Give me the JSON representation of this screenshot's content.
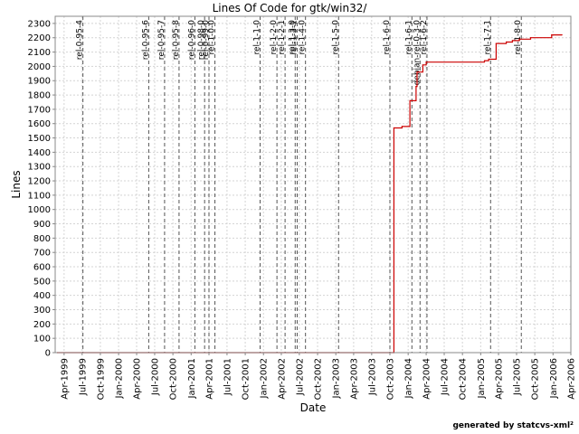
{
  "chart_data": {
    "type": "line",
    "title": "Lines Of Code for gtk/win32/",
    "xlabel": "Date",
    "ylabel": "Lines",
    "ylim": [
      0,
      2350
    ],
    "yticks": [
      0,
      100,
      200,
      300,
      400,
      500,
      600,
      700,
      800,
      900,
      1000,
      1100,
      1200,
      1300,
      1400,
      1500,
      1600,
      1700,
      1800,
      1900,
      2000,
      2100,
      2200,
      2300
    ],
    "xlim": [
      "1999-02-15",
      "2006-04-01"
    ],
    "xticks": [
      {
        "date": "1999-04-01",
        "label": "Apr-1999"
      },
      {
        "date": "1999-07-01",
        "label": "Jul-1999"
      },
      {
        "date": "1999-10-01",
        "label": "Oct-1999"
      },
      {
        "date": "2000-01-01",
        "label": "Jan-2000"
      },
      {
        "date": "2000-04-01",
        "label": "Apr-2000"
      },
      {
        "date": "2000-07-01",
        "label": "Jul-2000"
      },
      {
        "date": "2000-10-01",
        "label": "Oct-2000"
      },
      {
        "date": "2001-01-01",
        "label": "Jan-2001"
      },
      {
        "date": "2001-04-01",
        "label": "Apr-2001"
      },
      {
        "date": "2001-07-01",
        "label": "Jul-2001"
      },
      {
        "date": "2001-10-01",
        "label": "Oct-2001"
      },
      {
        "date": "2002-01-01",
        "label": "Jan-2002"
      },
      {
        "date": "2002-04-01",
        "label": "Apr-2002"
      },
      {
        "date": "2002-07-01",
        "label": "Jul-2002"
      },
      {
        "date": "2002-10-01",
        "label": "Oct-2002"
      },
      {
        "date": "2003-01-01",
        "label": "Jan-2003"
      },
      {
        "date": "2003-04-01",
        "label": "Apr-2003"
      },
      {
        "date": "2003-07-01",
        "label": "Jul-2003"
      },
      {
        "date": "2003-10-01",
        "label": "Oct-2003"
      },
      {
        "date": "2004-01-01",
        "label": "Jan-2004"
      },
      {
        "date": "2004-04-01",
        "label": "Apr-2004"
      },
      {
        "date": "2004-07-01",
        "label": "Jul-2004"
      },
      {
        "date": "2004-10-01",
        "label": "Oct-2004"
      },
      {
        "date": "2005-01-01",
        "label": "Jan-2005"
      },
      {
        "date": "2005-04-01",
        "label": "Apr-2005"
      },
      {
        "date": "2005-07-01",
        "label": "Jul-2005"
      },
      {
        "date": "2005-10-01",
        "label": "Oct-2005"
      },
      {
        "date": "2006-01-01",
        "label": "Jan-2006"
      },
      {
        "date": "2006-04-01",
        "label": "Apr-2006"
      }
    ],
    "grid": true,
    "legend": "none",
    "series": [
      {
        "color": "#cc0000",
        "step": true,
        "points": [
          {
            "x": "1999-02-25",
            "y": 0
          },
          {
            "x": "2003-10-20",
            "y": 0
          },
          {
            "x": "2003-10-21",
            "y": 1570
          },
          {
            "x": "2003-12-01",
            "y": 1580
          },
          {
            "x": "2004-01-10",
            "y": 1760
          },
          {
            "x": "2004-02-10",
            "y": 1860
          },
          {
            "x": "2004-02-15",
            "y": 1960
          },
          {
            "x": "2004-03-15",
            "y": 2010
          },
          {
            "x": "2004-04-01",
            "y": 2030
          },
          {
            "x": "2005-01-20",
            "y": 2040
          },
          {
            "x": "2005-02-10",
            "y": 2050
          },
          {
            "x": "2005-03-20",
            "y": 2160
          },
          {
            "x": "2005-05-10",
            "y": 2170
          },
          {
            "x": "2005-06-10",
            "y": 2180
          },
          {
            "x": "2005-07-15",
            "y": 2190
          },
          {
            "x": "2005-09-10",
            "y": 2200
          },
          {
            "x": "2005-12-25",
            "y": 2220
          },
          {
            "x": "2006-02-15",
            "y": 2220
          }
        ]
      }
    ],
    "markers": [
      {
        "date": "1999-07-05",
        "label": "rel-0-95-4"
      },
      {
        "date": "2000-06-01",
        "label": "rel-0-95-6"
      },
      {
        "date": "2000-08-20",
        "label": "rel-0-95-7"
      },
      {
        "date": "2000-11-01",
        "label": "rel-0-95-8"
      },
      {
        "date": "2001-01-20",
        "label": "rel-0-96-0"
      },
      {
        "date": "2001-03-10",
        "label": "rel-0-98-0"
      },
      {
        "date": "2001-04-01",
        "label": "rel-0-99-0"
      },
      {
        "date": "2001-05-01",
        "label": "rel-1-0-0"
      },
      {
        "date": "2001-12-15",
        "label": "rel-1-1-0"
      },
      {
        "date": "2002-03-10",
        "label": "rel-1-2-0"
      },
      {
        "date": "2002-04-20",
        "label": "rel-1-2-1"
      },
      {
        "date": "2002-06-10",
        "label": "rel-1-3-0"
      },
      {
        "date": "2002-06-20",
        "label": "rel-1-3-1"
      },
      {
        "date": "2002-08-01",
        "label": "rel-1-4-0"
      },
      {
        "date": "2003-01-15",
        "label": "rel-1-5-0"
      },
      {
        "date": "2003-10-01",
        "label": "rel-1-6-0"
      },
      {
        "date": "2004-01-20",
        "label": "rel-1-6-1"
      },
      {
        "date": "2004-03-01",
        "label": "debian-rel-0-3-0"
      },
      {
        "date": "2004-04-05",
        "label": "rel-1-6-2"
      },
      {
        "date": "2005-02-20",
        "label": "rel-1-7-1"
      },
      {
        "date": "2005-07-25",
        "label": "rel-1-8-0"
      }
    ]
  },
  "footer": {
    "text": "generated by statcvs-xml²"
  }
}
